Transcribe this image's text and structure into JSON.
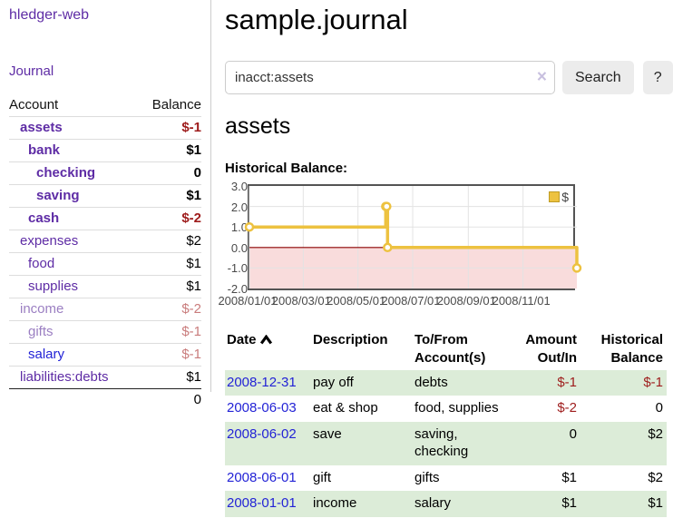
{
  "sidebar": {
    "brand": "hledger-web",
    "journal_link": "Journal",
    "accounts_header": {
      "account": "Account",
      "balance": "Balance"
    },
    "accounts": [
      {
        "name": "assets",
        "level": 1,
        "bold": true,
        "name_style": "purple",
        "balance": "$-1",
        "balance_style": "neg"
      },
      {
        "name": "bank",
        "level": 2,
        "bold": true,
        "name_style": "purple",
        "balance": "$1",
        "balance_style": "pos"
      },
      {
        "name": "checking",
        "level": 3,
        "bold": true,
        "name_style": "purple",
        "balance": "0",
        "balance_style": "pos"
      },
      {
        "name": "saving",
        "level": 3,
        "bold": true,
        "name_style": "purple",
        "balance": "$1",
        "balance_style": "pos"
      },
      {
        "name": "cash",
        "level": 2,
        "bold": true,
        "name_style": "purple",
        "balance": "$-2",
        "balance_style": "neg"
      },
      {
        "name": "expenses",
        "level": 1,
        "bold": false,
        "name_style": "purple",
        "balance": "$2",
        "balance_style": "pos"
      },
      {
        "name": "food",
        "level": 2,
        "bold": false,
        "name_style": "purple",
        "balance": "$1",
        "balance_style": "pos"
      },
      {
        "name": "supplies",
        "level": 2,
        "bold": false,
        "name_style": "purple",
        "balance": "$1",
        "balance_style": "pos"
      },
      {
        "name": "income",
        "level": 1,
        "bold": false,
        "name_style": "purple-dim",
        "balance": "$-2",
        "balance_style": "neg-dim"
      },
      {
        "name": "gifts",
        "level": 2,
        "bold": false,
        "name_style": "purple-dim",
        "balance": "$-1",
        "balance_style": "neg-dim"
      },
      {
        "name": "salary",
        "level": 2,
        "bold": false,
        "name_style": "blue",
        "balance": "$-1",
        "balance_style": "neg-dim"
      },
      {
        "name": "liabilities:debts",
        "level": 1,
        "bold": false,
        "name_style": "purple",
        "balance": "$1",
        "balance_style": "pos"
      }
    ],
    "total_balance": "0"
  },
  "main": {
    "title": "sample.journal",
    "search": {
      "value": "inacct:assets",
      "clear_icon": "×",
      "button_label": "Search",
      "help_label": "?"
    },
    "account_heading": "assets",
    "chart_label": "Historical Balance:"
  },
  "chart_data": {
    "type": "line",
    "style": "step",
    "title": "Historical Balance",
    "series": [
      {
        "name": "$",
        "color": "#edc240",
        "points": [
          [
            "2008-01-01",
            1
          ],
          [
            "2008-06-01",
            2
          ],
          [
            "2008-06-02",
            2
          ],
          [
            "2008-06-03",
            0
          ],
          [
            "2008-12-31",
            -1
          ]
        ]
      }
    ],
    "x_range": [
      "2008-01-01",
      "2008-12-31"
    ],
    "ylim": [
      -2,
      3
    ],
    "y_ticks": [
      3,
      2,
      1,
      0,
      -1,
      -2
    ],
    "y_tick_labels": [
      "3.0",
      "2.0",
      "1.0",
      "0.0",
      "-1.0",
      "-2.0"
    ],
    "x_ticks": [
      "2008-01-01",
      "2008-03-01",
      "2008-05-01",
      "2008-07-01",
      "2008-09-01",
      "2008-11-01"
    ],
    "x_tick_labels": [
      "2008/01/01",
      "2008/03/01",
      "2008/05/01",
      "2008/07/01",
      "2008/09/01",
      "2008/11/01"
    ],
    "legend": {
      "label": "$",
      "position": "top-right"
    },
    "grid": true,
    "negative_region_color": "#f9dcdc",
    "zero_line_color": "#8b0000",
    "grid_color": "#e3e3e3"
  },
  "register": {
    "columns": [
      {
        "lines": [
          "Date"
        ],
        "align": "left",
        "sorted": "asc"
      },
      {
        "lines": [
          "Description"
        ],
        "align": "left"
      },
      {
        "lines": [
          "To/From",
          "Account(s)"
        ],
        "align": "left"
      },
      {
        "lines": [
          "Amount",
          "Out/In"
        ],
        "align": "right"
      },
      {
        "lines": [
          "Historical",
          "Balance"
        ],
        "align": "right"
      }
    ],
    "rows": [
      {
        "date": "2008-12-31",
        "description": "pay off",
        "accounts": "debts",
        "amount": "$-1",
        "amount_style": "neg",
        "balance": "$-1",
        "balance_style": "neg",
        "shaded": true
      },
      {
        "date": "2008-06-03",
        "description": "eat & shop",
        "accounts": "food, supplies",
        "amount": "$-2",
        "amount_style": "neg",
        "balance": "0",
        "balance_style": "pos",
        "shaded": false
      },
      {
        "date": "2008-06-02",
        "description": "save",
        "accounts": "saving, checking",
        "amount": "0",
        "amount_style": "pos",
        "balance": "$2",
        "balance_style": "pos",
        "shaded": true
      },
      {
        "date": "2008-06-01",
        "description": "gift",
        "accounts": "gifts",
        "amount": "$1",
        "amount_style": "pos",
        "balance": "$2",
        "balance_style": "pos",
        "shaded": false
      },
      {
        "date": "2008-01-01",
        "description": "income",
        "accounts": "salary",
        "amount": "$1",
        "amount_style": "pos",
        "balance": "$1",
        "balance_style": "pos",
        "shaded": true
      }
    ]
  },
  "colors": {
    "link_purple": "#5e2ca5",
    "link_blue": "#2323d6",
    "negative_strong": "#9e1c1c",
    "negative_dim": "#c97c7c",
    "row_green": "#dcecd8",
    "series_yellow": "#edc240"
  }
}
